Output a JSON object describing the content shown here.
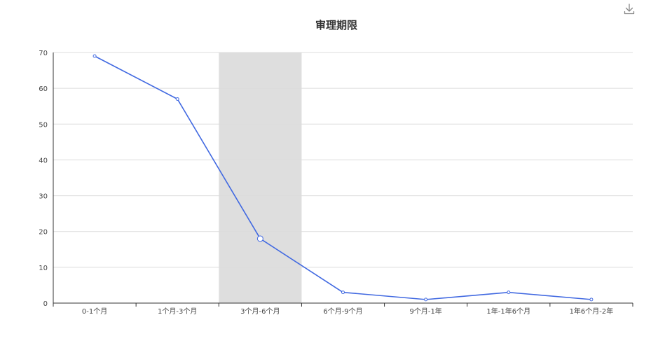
{
  "chart_data": {
    "type": "line",
    "title": "审理期限",
    "categories": [
      "0-1个月",
      "1个月-3个月",
      "3个月-6个月",
      "6个月-9个月",
      "9个月-1年",
      "1年-1年6个月",
      "1年6个月-2年"
    ],
    "series": [
      {
        "values": [
          69,
          57,
          18,
          3,
          1,
          3,
          1
        ]
      }
    ],
    "ylim": [
      0,
      70
    ],
    "yticks": [
      0,
      10,
      20,
      30,
      40,
      50,
      60,
      70
    ],
    "highlighted_category": "3个月-6个月",
    "grid": true,
    "legend": "none"
  },
  "colors": {
    "line": "#4169e1",
    "highlight_band": "#dedede",
    "grid": "#dcdcdc",
    "axis": "#333333",
    "title": "#333333"
  },
  "toolbox": {
    "download_icon": "download-icon"
  }
}
